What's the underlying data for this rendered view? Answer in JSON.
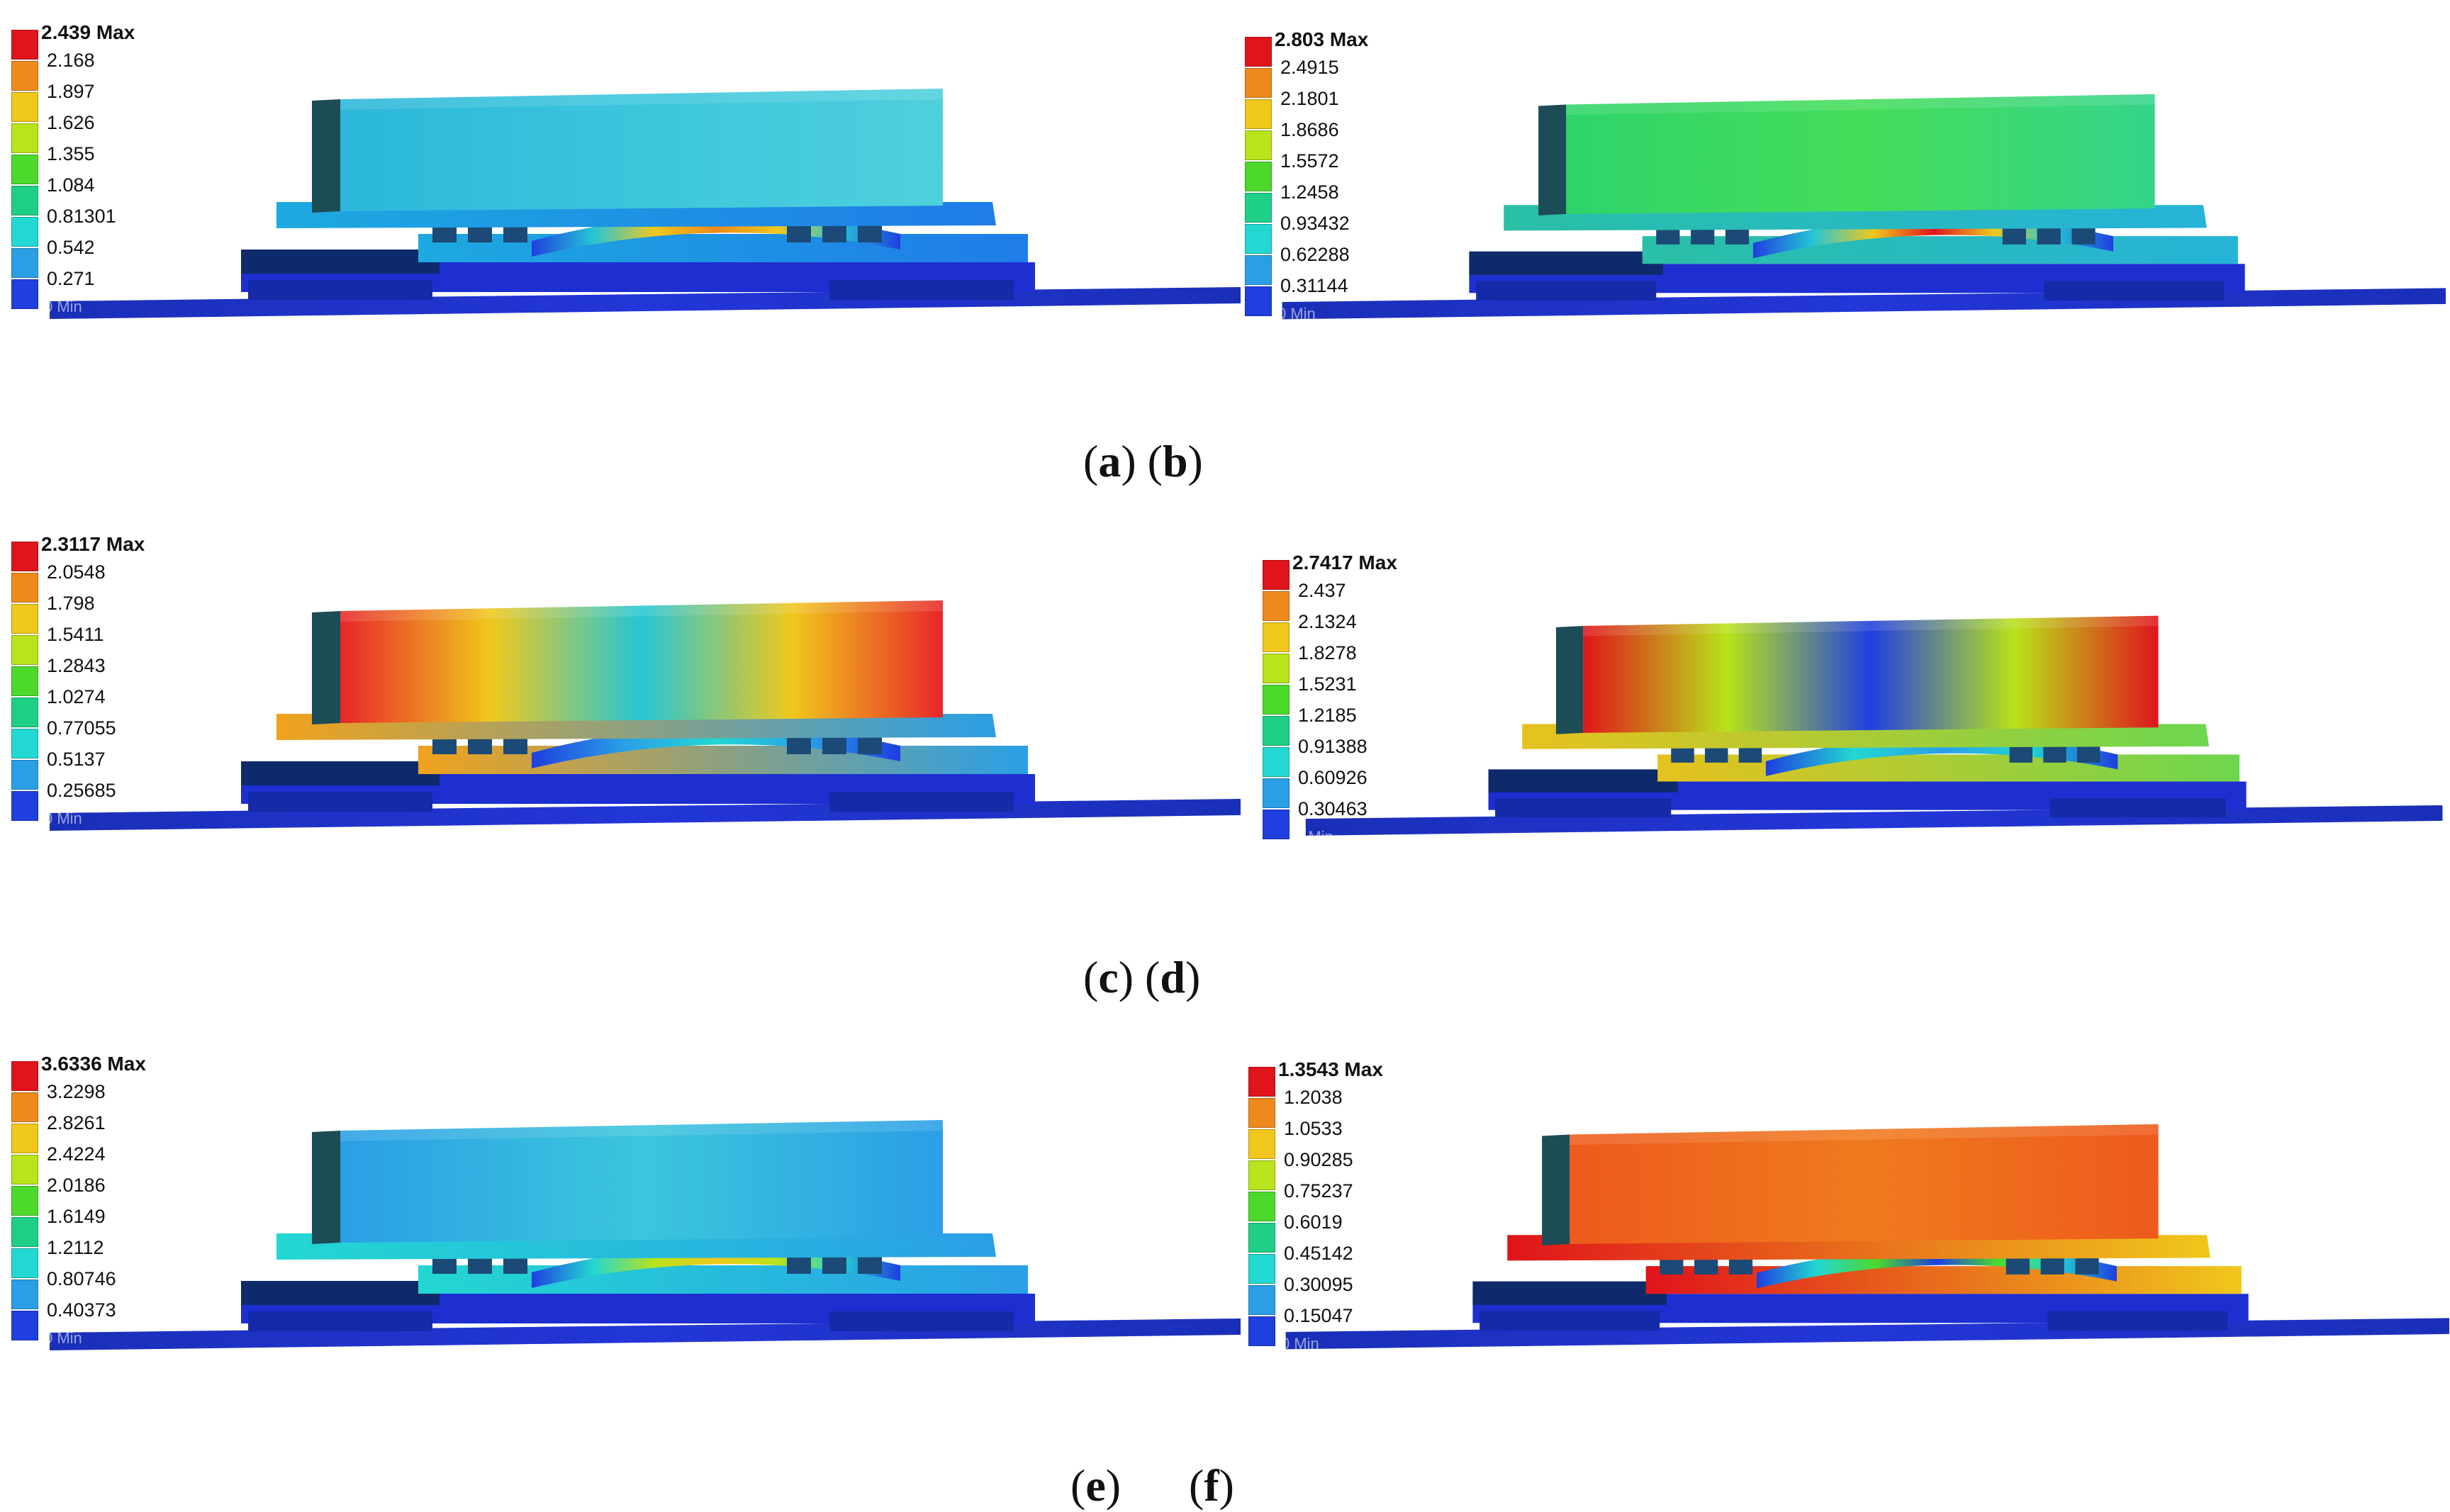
{
  "panels": [
    {
      "id": "a",
      "max_label": "2.439 Max",
      "levels": [
        "2.168",
        "1.897",
        "1.626",
        "1.355",
        "1.084",
        "0.81301",
        "0.542",
        "0.271"
      ],
      "min_label": "0 Min"
    },
    {
      "id": "b",
      "max_label": "2.803 Max",
      "levels": [
        "2.4915",
        "2.1801",
        "1.8686",
        "1.5572",
        "1.2458",
        "0.93432",
        "0.62288",
        "0.31144"
      ],
      "min_label": "0 Min"
    },
    {
      "id": "c",
      "max_label": "2.3117 Max",
      "levels": [
        "2.0548",
        "1.798",
        "1.5411",
        "1.2843",
        "1.0274",
        "0.77055",
        "0.5137",
        "0.25685"
      ],
      "min_label": "0 Min"
    },
    {
      "id": "d",
      "max_label": "2.7417 Max",
      "levels": [
        "2.437",
        "2.1324",
        "1.8278",
        "1.5231",
        "1.2185",
        "0.91388",
        "0.60926",
        "0.30463"
      ],
      "min_label": "0 Min"
    },
    {
      "id": "e",
      "max_label": "3.6336 Max",
      "levels": [
        "3.2298",
        "2.8261",
        "2.4224",
        "2.0186",
        "1.6149",
        "1.2112",
        "0.80746",
        "0.40373"
      ],
      "min_label": "0 Min"
    },
    {
      "id": "f",
      "max_label": "1.3543 Max",
      "levels": [
        "1.2038",
        "1.0533",
        "0.90285",
        "0.75237",
        "0.6019",
        "0.45142",
        "0.30095",
        "0.15047"
      ],
      "min_label": "0 Min"
    }
  ],
  "legend_colors": [
    "#e0141b",
    "#ee8a1d",
    "#f0c81c",
    "#b9e31a",
    "#4cd92c",
    "#1fcf86",
    "#23d7d2",
    "#2a9fe6",
    "#1f3fe0"
  ],
  "captions": {
    "row1": {
      "l1": "(",
      "b1": "a",
      "r1": ") (",
      "b2": "b",
      "r2": ")"
    },
    "row2": {
      "l1": "(",
      "b1": "c",
      "r1": ") (",
      "b2": "d",
      "r2": ")"
    },
    "row3": {
      "l1": "(",
      "b1": "e",
      "r1": ")      (",
      "b2": "f",
      "r2": ")"
    }
  }
}
